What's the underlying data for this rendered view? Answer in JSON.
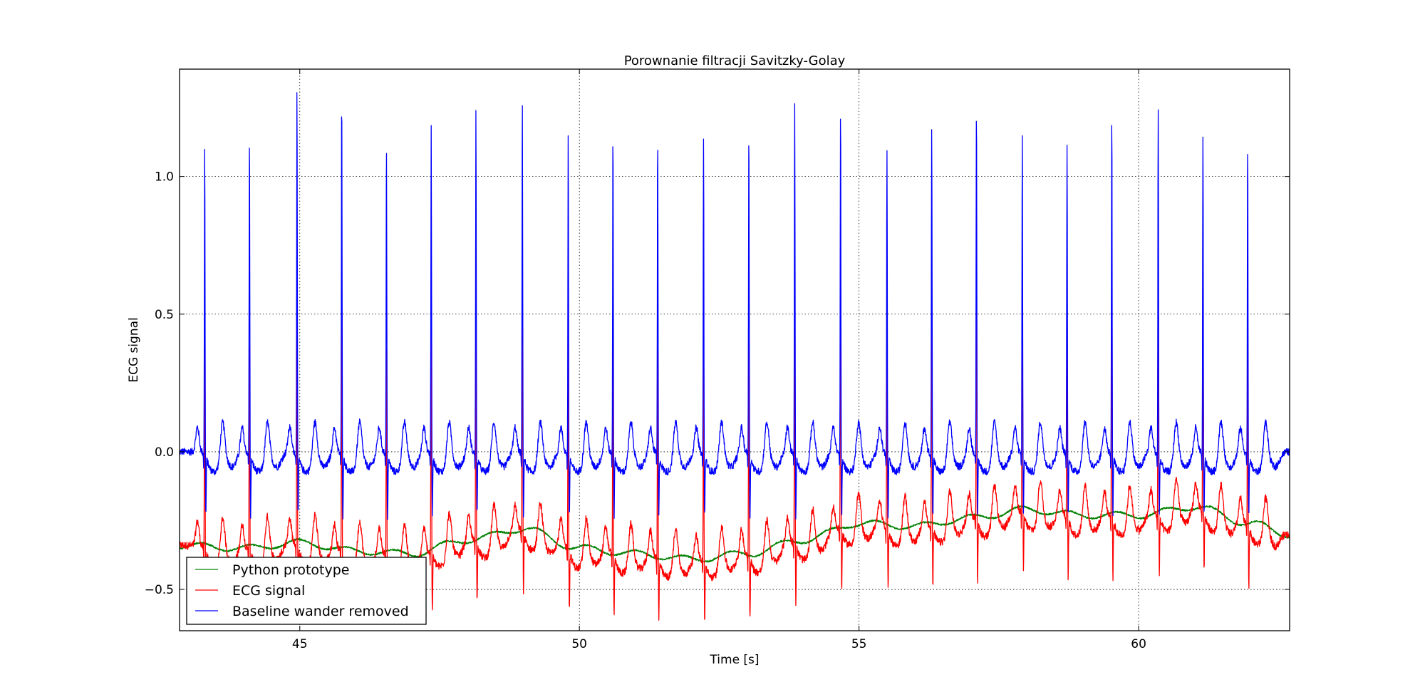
{
  "chart_data": {
    "type": "line",
    "title": "Porownanie filtracji Savitzky-Golay",
    "xlabel": "Time [s]",
    "ylabel": "ECG signal",
    "xlim": [
      42.85,
      62.7
    ],
    "ylim": [
      -0.65,
      1.39
    ],
    "x_ticks": [
      45,
      50,
      55,
      60
    ],
    "x_tick_labels": [
      "45",
      "50",
      "55",
      "60"
    ],
    "y_ticks": [
      -0.5,
      0.0,
      0.5,
      1.0
    ],
    "y_tick_labels": [
      "−0.5",
      "0.0",
      "0.5",
      "1.0"
    ],
    "grid": true,
    "legend_position": "lower-left",
    "beat_times": [
      43.3,
      44.1,
      44.95,
      45.75,
      46.55,
      47.35,
      48.15,
      48.98,
      49.8,
      50.6,
      51.4,
      52.22,
      53.03,
      53.85,
      54.67,
      55.5,
      56.3,
      57.1,
      57.92,
      58.72,
      59.52,
      60.35,
      61.15,
      61.95
    ],
    "blue_peaks": [
      1.13,
      1.17,
      1.35,
      1.32,
      1.13,
      1.21,
      1.25,
      1.31,
      1.16,
      1.18,
      1.16,
      1.15,
      1.2,
      1.27,
      1.26,
      1.11,
      1.2,
      1.26,
      1.18,
      1.12,
      1.24,
      1.26,
      1.15,
      1.14
    ],
    "red_peaks": [
      0.83,
      0.79,
      0.98,
      0.91,
      0.79,
      0.93,
      0.94,
      0.98,
      0.86,
      0.88,
      0.78,
      0.77,
      0.84,
      0.94,
      0.99,
      0.81,
      0.95,
      1.02,
      0.99,
      0.88,
      1.0,
      1.03,
      0.95,
      0.84
    ],
    "baseline_x": [
      42.85,
      44.0,
      45.0,
      46.0,
      47.0,
      48.0,
      49.0,
      50.0,
      51.0,
      52.0,
      53.0,
      54.0,
      55.0,
      56.0,
      57.0,
      58.0,
      59.0,
      60.0,
      61.0,
      62.0,
      62.7
    ],
    "baseline_y": [
      -0.34,
      -0.35,
      -0.33,
      -0.36,
      -0.37,
      -0.32,
      -0.28,
      -0.35,
      -0.37,
      -0.39,
      -0.37,
      -0.32,
      -0.26,
      -0.27,
      -0.24,
      -0.21,
      -0.23,
      -0.23,
      -0.2,
      -0.26,
      -0.3
    ],
    "series": [
      {
        "name": "Python prototype",
        "color": "#008000"
      },
      {
        "name": "ECG signal",
        "color": "#ff0000"
      },
      {
        "name": "Baseline wander removed",
        "color": "#0000ff"
      }
    ]
  }
}
